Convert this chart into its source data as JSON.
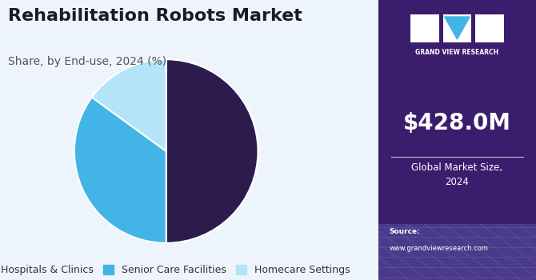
{
  "title": "Rehabilitation Robots Market",
  "subtitle": "Share, by End-use, 2024 (%)",
  "pie_labels": [
    "Hospitals & Clinics",
    "Senior Care Facilities",
    "Homecare Settings"
  ],
  "pie_values": [
    50,
    35,
    15
  ],
  "pie_colors": [
    "#2d1b4e",
    "#42b4e6",
    "#b3e4f7"
  ],
  "pie_startangle": 90,
  "legend_marker_colors": [
    "#2d1b4e",
    "#42b4e6",
    "#b3e4f7"
  ],
  "background_color": "#eef4fb",
  "sidebar_bg": "#3b1d6e",
  "sidebar_text_value": "$428.0M",
  "sidebar_text_label": "Global Market Size,\n2024",
  "sidebar_source_bold": "Source:",
  "sidebar_source_normal": "www.grandviewresearch.com",
  "sidebar_brand": "GRAND VIEW RESEARCH",
  "title_fontsize": 16,
  "subtitle_fontsize": 10,
  "legend_fontsize": 9
}
